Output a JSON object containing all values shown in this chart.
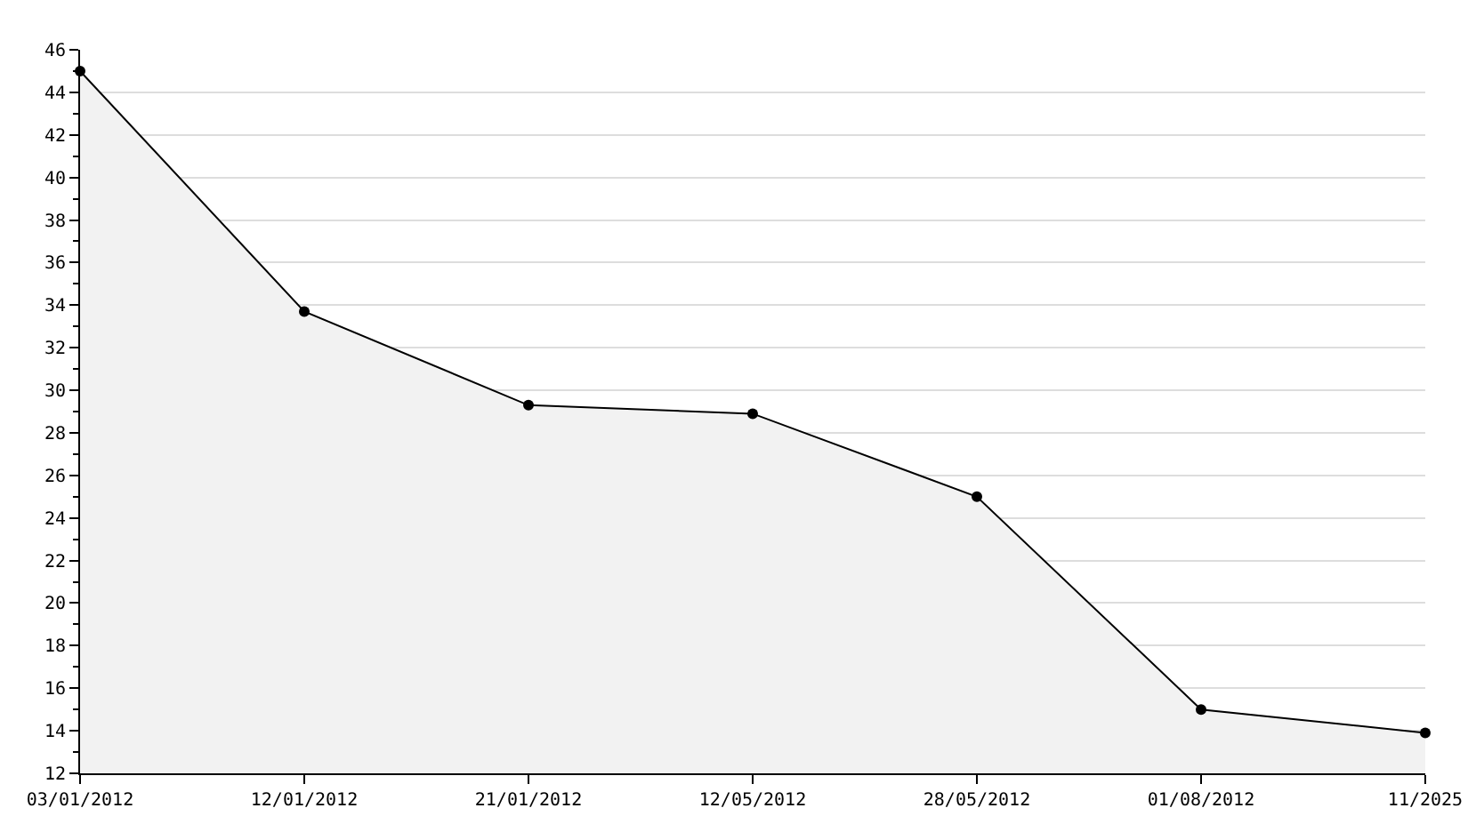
{
  "chart_data": {
    "type": "area",
    "categories": [
      "03/01/2012",
      "12/01/2012",
      "21/01/2012",
      "12/05/2012",
      "28/05/2012",
      "01/08/2012",
      "11/2025"
    ],
    "series": [
      {
        "color": "#000000",
        "values": [
          45,
          33.7,
          29.3,
          28.9,
          25,
          15,
          13.9
        ]
      }
    ],
    "ylim": [
      12,
      46
    ],
    "yticks": [
      12,
      14,
      16,
      18,
      20,
      22,
      24,
      26,
      28,
      30,
      32,
      34,
      36,
      38,
      40,
      42,
      44,
      46
    ],
    "grid": "y",
    "marker": "circle",
    "line_style": "solid"
  }
}
